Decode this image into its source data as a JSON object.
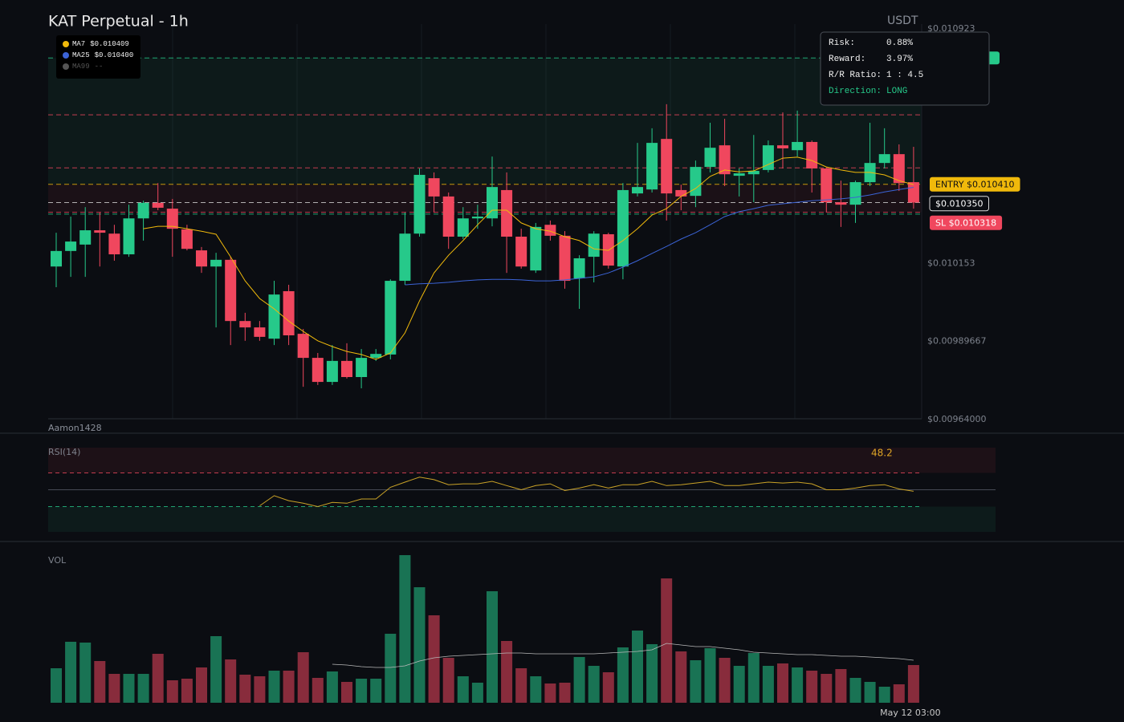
{
  "chart_data": [
    {
      "type": "candlestick",
      "title": "KAT Perpetual - 1h",
      "unit_label": "USDT",
      "watermark": "Aamon1428",
      "up_color": "#26c98a",
      "down_color": "#f0475e",
      "open": [
        0.01014,
        0.010191,
        0.010212,
        0.010259,
        0.010248,
        0.01018,
        0.010298,
        0.010349,
        0.01033,
        0.010262,
        0.010193,
        0.01014,
        0.010162,
        0.009961,
        0.00994,
        0.009903,
        0.010059,
        0.009919,
        0.00984,
        0.009761,
        0.00983,
        0.009777,
        0.00984,
        0.009851,
        0.010093,
        0.010248,
        0.01043,
        0.01037,
        0.010238,
        0.010298,
        0.010298,
        0.010391,
        0.010238,
        0.010127,
        0.010277,
        0.010241,
        0.010101,
        0.010172,
        0.010246,
        0.01014,
        0.01038,
        0.010393,
        0.010559,
        0.010391,
        0.010372,
        0.010467,
        0.010538,
        0.010438,
        0.010443,
        0.010457,
        0.010538,
        0.010522,
        0.010549,
        0.010462,
        0.010351,
        0.010343,
        0.010417,
        0.01048,
        0.010509,
        0.010417
      ],
      "high": [
        0.010251,
        0.010304,
        0.010335,
        0.010317,
        0.010277,
        0.010343,
        0.010356,
        0.010414,
        0.010362,
        0.010277,
        0.010204,
        0.010185,
        0.010172,
        0.009988,
        0.009961,
        0.010093,
        0.01008,
        0.009935,
        0.009856,
        0.009882,
        0.009888,
        0.009869,
        0.009869,
        0.010098,
        0.010317,
        0.010462,
        0.010449,
        0.010383,
        0.010335,
        0.010343,
        0.010501,
        0.010449,
        0.010264,
        0.010283,
        0.010291,
        0.010256,
        0.010177,
        0.010256,
        0.010251,
        0.010414,
        0.010546,
        0.010594,
        0.010673,
        0.010409,
        0.010488,
        0.010612,
        0.010625,
        0.010462,
        0.010572,
        0.010554,
        0.010646,
        0.010652,
        0.010554,
        0.010467,
        0.010422,
        0.010422,
        0.010612,
        0.010594,
        0.010541,
        0.010533
      ],
      "low": [
        0.010072,
        0.010106,
        0.010106,
        0.01014,
        0.010159,
        0.010172,
        0.010225,
        0.010325,
        0.010172,
        0.010193,
        0.010119,
        0.00994,
        0.009882,
        0.009896,
        0.009896,
        0.009882,
        0.009882,
        0.009745,
        0.009751,
        0.009751,
        0.009772,
        0.00974,
        0.00983,
        0.009835,
        0.01008,
        0.010238,
        0.010317,
        0.010198,
        0.01023,
        0.010264,
        0.010272,
        0.010119,
        0.010133,
        0.010119,
        0.010225,
        0.010067,
        0.010001,
        0.010088,
        0.010133,
        0.010098,
        0.01037,
        0.010383,
        0.010291,
        0.010325,
        0.010335,
        0.010449,
        0.010404,
        0.01037,
        0.010351,
        0.010449,
        0.010462,
        0.010501,
        0.010383,
        0.010317,
        0.01027,
        0.010283,
        0.010404,
        0.010462,
        0.010388,
        0.01033
      ],
      "close": [
        0.010191,
        0.010222,
        0.010259,
        0.010251,
        0.01018,
        0.010298,
        0.010349,
        0.010333,
        0.010264,
        0.010198,
        0.01014,
        0.010162,
        0.009961,
        0.00994,
        0.009909,
        0.010048,
        0.009914,
        0.00984,
        0.009761,
        0.00983,
        0.009777,
        0.00984,
        0.009853,
        0.010093,
        0.010248,
        0.010441,
        0.01037,
        0.010238,
        0.010298,
        0.010304,
        0.010401,
        0.010238,
        0.01014,
        0.01027,
        0.010241,
        0.010093,
        0.010167,
        0.010248,
        0.010143,
        0.010391,
        0.010401,
        0.010546,
        0.01038,
        0.01037,
        0.010467,
        0.01053,
        0.010443,
        0.010446,
        0.010454,
        0.010538,
        0.010528,
        0.010549,
        0.010462,
        0.010351,
        0.010343,
        0.010417,
        0.01048,
        0.010509,
        0.010414,
        0.01035
      ],
      "ylim": [
        0.00964,
        0.010923
      ],
      "yticks": [
        {
          "value": 0.010923,
          "label": "$0.010923"
        },
        {
          "value": 0.010153,
          "label": "$0.010153"
        },
        {
          "value": 0.00989667,
          "label": "$0.00989667"
        },
        {
          "value": 0.00964,
          "label": "$0.00964000"
        }
      ],
      "series": [
        {
          "name": "MA7",
          "legend_label": "$0.010409",
          "color": "#f0b90b",
          "values": [
            null,
            null,
            null,
            null,
            null,
            null,
            0.010264,
            0.010272,
            0.010272,
            0.010264,
            0.010256,
            0.010246,
            0.010172,
            0.010093,
            0.010035,
            0.010001,
            0.009961,
            0.009927,
            0.009896,
            0.009877,
            0.009861,
            0.009851,
            0.009835,
            0.009856,
            0.009922,
            0.010027,
            0.010119,
            0.010177,
            0.010225,
            0.010277,
            0.010325,
            0.010325,
            0.010283,
            0.010264,
            0.010256,
            0.010238,
            0.010225,
            0.010198,
            0.010193,
            0.010225,
            0.010264,
            0.010309,
            0.01033,
            0.01037,
            0.010396,
            0.010436,
            0.010457,
            0.010451,
            0.010454,
            0.010475,
            0.010496,
            0.010499,
            0.010488,
            0.010467,
            0.010457,
            0.010449,
            0.010449,
            0.010441,
            0.010422,
            0.010409
          ]
        },
        {
          "name": "MA25",
          "legend_label": "$0.010400",
          "color": "#3b63d6",
          "values": [
            null,
            null,
            null,
            null,
            null,
            null,
            null,
            null,
            null,
            null,
            null,
            null,
            null,
            null,
            null,
            null,
            null,
            null,
            null,
            null,
            null,
            null,
            null,
            null,
            0.01008,
            0.010083,
            0.010085,
            0.010088,
            0.010093,
            0.010096,
            0.010098,
            0.010098,
            0.010096,
            0.010093,
            0.010093,
            0.010096,
            0.010101,
            0.010106,
            0.010119,
            0.010138,
            0.010159,
            0.010183,
            0.010206,
            0.01023,
            0.010251,
            0.010277,
            0.010304,
            0.01032,
            0.01033,
            0.010341,
            0.010346,
            0.010351,
            0.010356,
            0.010359,
            0.010362,
            0.010367,
            0.010375,
            0.010385,
            0.010393,
            0.0104
          ]
        }
      ],
      "legend_extra": {
        "name": "MA99",
        "label": "--",
        "color": "#555555"
      },
      "zones": [
        {
          "from": 0.01041,
          "to": 0.010825,
          "color": "#26c98a"
        },
        {
          "from": 0.010318,
          "to": 0.01041,
          "color": "#f0475e"
        }
      ],
      "levels": [
        {
          "value": 0.010825,
          "color": "#26c98a"
        },
        {
          "value": 0.010638,
          "color": "#f0475e"
        },
        {
          "value": 0.010464,
          "color": "#f0475e"
        },
        {
          "value": 0.01041,
          "label": "ENTRY $0.010410",
          "color": "#f0b90b"
        },
        {
          "value": 0.01035,
          "label": "$0.010350",
          "color": "#d8d8d8"
        },
        {
          "value": 0.010318,
          "label": "SL $0.010318",
          "color": "#f0475e"
        },
        {
          "value": 0.010312,
          "color": "#26c98a"
        }
      ],
      "tooltip": [
        [
          "Risk:",
          "0.88%"
        ],
        [
          "Reward:",
          "3.97%"
        ],
        [
          "R/R Ratio:",
          "1 : 4.5"
        ],
        [
          "Direction:",
          "LONG"
        ]
      ]
    },
    {
      "type": "line",
      "title": "RSI(14)",
      "color": "#c9a227",
      "ylim": [
        0,
        100
      ],
      "values": [
        null,
        null,
        null,
        null,
        null,
        null,
        null,
        null,
        null,
        null,
        null,
        null,
        null,
        null,
        31,
        43,
        37,
        34,
        30,
        35,
        34,
        39,
        39,
        53,
        59,
        65,
        62,
        56,
        57,
        57,
        60,
        55,
        50,
        55,
        57,
        49,
        52,
        56,
        52,
        56,
        56,
        60,
        55,
        56,
        58,
        60,
        55,
        55,
        57,
        59,
        58,
        59,
        57,
        50,
        50,
        52,
        55,
        56,
        51,
        48.2
      ],
      "levels": [
        {
          "value": 70,
          "color": "#f0475e",
          "dashed": true
        },
        {
          "value": 50,
          "color": "#555a66",
          "dashed": false
        },
        {
          "value": 30,
          "color": "#26c98a",
          "dashed": true
        }
      ],
      "zones": [
        {
          "from": 70,
          "to": 100,
          "color": "#f0475e"
        },
        {
          "from": 0,
          "to": 30,
          "color": "#26c98a"
        }
      ]
    },
    {
      "type": "bar",
      "title": "VOL",
      "ylim": [
        0,
        190
      ],
      "categories": [
        null,
        null,
        null,
        null,
        null,
        null,
        null,
        null,
        null,
        null,
        null,
        null,
        null,
        null,
        null,
        null,
        null,
        null,
        null,
        null,
        null,
        null,
        null,
        null,
        null,
        null,
        null,
        null,
        null,
        null,
        null,
        null,
        null,
        null,
        null,
        null,
        null,
        null,
        null,
        null,
        null,
        null,
        null,
        null,
        null,
        null,
        null,
        null,
        null,
        null,
        null,
        null,
        null,
        null,
        null,
        null,
        null,
        null,
        null,
        "May 12 03:00"
      ],
      "values": [
        43,
        76,
        75,
        52,
        36,
        36,
        36,
        61,
        28,
        30,
        44,
        83,
        54,
        35,
        33,
        40,
        40,
        63,
        31,
        39,
        26,
        30,
        30,
        86,
        184,
        144,
        109,
        56,
        33,
        25,
        139,
        77,
        43,
        33,
        24,
        25,
        57,
        46,
        38,
        69,
        90,
        73,
        155,
        64,
        53,
        68,
        56,
        46,
        62,
        46,
        49,
        44,
        40,
        36,
        42,
        31,
        26,
        20,
        23,
        47
      ],
      "line": {
        "color": "#b8b8b8",
        "values": [
          null,
          null,
          null,
          null,
          null,
          null,
          null,
          null,
          null,
          null,
          null,
          null,
          null,
          null,
          null,
          null,
          null,
          null,
          null,
          48,
          47,
          45,
          44,
          44,
          46,
          52,
          56,
          58,
          59,
          60,
          61,
          62,
          62,
          61,
          61,
          61,
          61,
          61,
          62,
          63,
          64,
          66,
          74,
          72,
          70,
          70,
          68,
          66,
          63,
          62,
          61,
          60,
          60,
          59,
          58,
          58,
          57,
          56,
          55,
          53
        ]
      }
    }
  ]
}
